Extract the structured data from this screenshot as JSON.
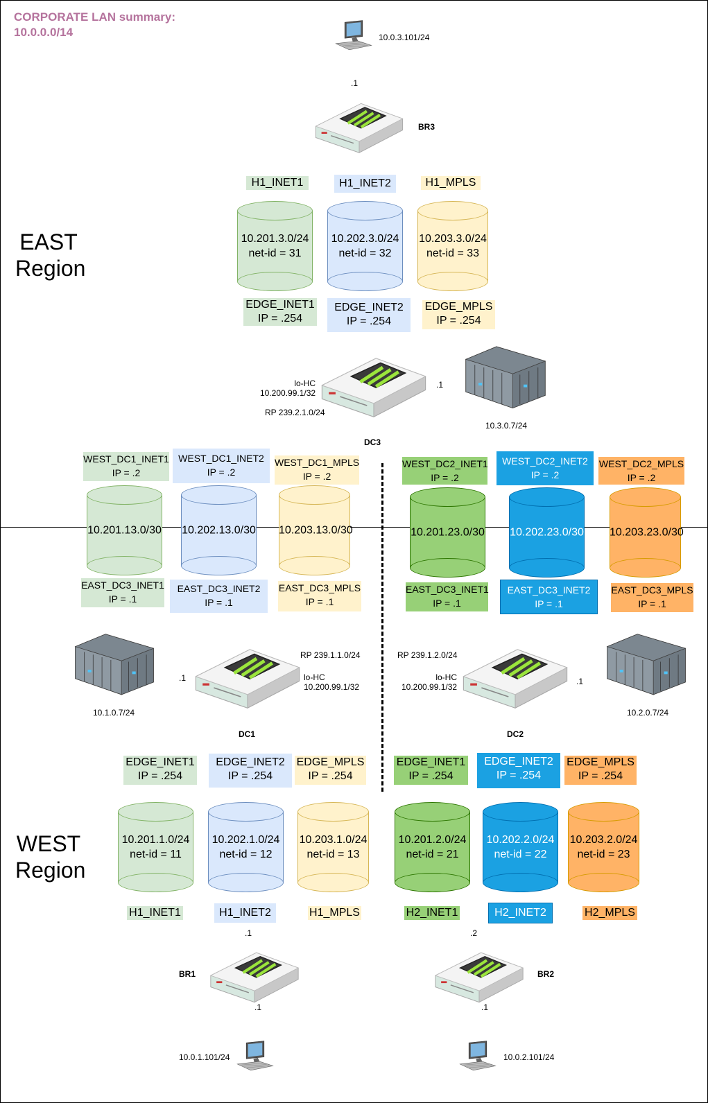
{
  "summary": {
    "line1": "CORPORATE LAN summary:",
    "line2": "10.0.0.0/14",
    "color": "#b5739d"
  },
  "regions": {
    "east_line1": "EAST",
    "east_line2": "Region",
    "west_line1": "WEST",
    "west_line2": "Region"
  },
  "colors": {
    "inet1_light": "#d5e8d4",
    "inet1_light_border": "#82b366",
    "inet2_light": "#dae8fc",
    "inet2_light_border": "#6c8ebf",
    "mpls_light": "#fff2cc",
    "mpls_light_border": "#d6b656",
    "inet1_dark": "#97d077",
    "inet1_dark_border": "#2d7600",
    "inet2_dark": "#1ba1e2",
    "inet2_dark_border": "#006eaf",
    "mpls_dark": "#ffb366",
    "mpls_dark_border": "#d79b00"
  },
  "br3": {
    "name": "BR3",
    "pc_ip": "10.0.3.101/24",
    "port": ".1",
    "labels": [
      "H1_INET1",
      "H1_INET2",
      "H1_MPLS"
    ],
    "cylinders": [
      {
        "subnet": "10.201.3.0/24",
        "netid": "net-id = 31"
      },
      {
        "subnet": "10.202.3.0/24",
        "netid": "net-id = 32"
      },
      {
        "subnet": "10.203.3.0/24",
        "netid": "net-id = 33"
      }
    ]
  },
  "dc3": {
    "name": "DC3",
    "edges": [
      {
        "name": "EDGE_INET1",
        "ip": "IP = .254"
      },
      {
        "name": "EDGE_INET2",
        "ip": "IP = .254"
      },
      {
        "name": "EDGE_MPLS",
        "ip": "IP = .254"
      }
    ],
    "lo_hc": "lo-HC",
    "lo_hc_ip": "10.200.99.1/32",
    "rp": "RP 239.2.1.0/24",
    "port": ".1",
    "server_ip": "10.3.0.7/24"
  },
  "links_dc1": {
    "west": [
      {
        "name": "WEST_DC1_INET1",
        "ip": "IP = .2"
      },
      {
        "name": "WEST_DC1_INET2",
        "ip": "IP = .2"
      },
      {
        "name": "WEST_DC1_MPLS",
        "ip": "IP = .2"
      }
    ],
    "subnets": [
      "10.201.13.0/30",
      "10.202.13.0/30",
      "10.203.13.0/30"
    ],
    "east": [
      {
        "name": "EAST_DC3_INET1",
        "ip": "IP = .1"
      },
      {
        "name": "EAST_DC3_INET2",
        "ip": "IP = .1"
      },
      {
        "name": "EAST_DC3_MPLS",
        "ip": "IP = .1"
      }
    ]
  },
  "links_dc2": {
    "west": [
      {
        "name": "WEST_DC2_INET1",
        "ip": "IP = .2"
      },
      {
        "name": "WEST_DC2_INET2",
        "ip": "IP = .2"
      },
      {
        "name": "WEST_DC2_MPLS",
        "ip": "IP = .2"
      }
    ],
    "subnets": [
      "10.201.23.0/30",
      "10.202.23.0/30",
      "10.203.23.0/30"
    ],
    "east": [
      {
        "name": "EAST_DC3_INET1",
        "ip": "IP = .1"
      },
      {
        "name": "EAST_DC3_INET2",
        "ip": "IP  = .1"
      },
      {
        "name": "EAST_DC3_MPLS",
        "ip": "IP = .1"
      }
    ]
  },
  "dc1": {
    "name": "DC1",
    "server_ip": "10.1.0.7/24",
    "port": ".1",
    "rp": "RP 239.1.1.0/24",
    "lo_hc": "lo-HC",
    "lo_hc_ip": "10.200.99.1/32",
    "edges": [
      {
        "name": "EDGE_INET1",
        "ip": "IP = .254"
      },
      {
        "name": "EDGE_INET2",
        "ip": "IP = .254"
      },
      {
        "name": "EDGE_MPLS",
        "ip": "IP = .254"
      }
    ],
    "cylinders": [
      {
        "subnet": "10.201.1.0/24",
        "netid": "net-id = 11"
      },
      {
        "subnet": "10.202.1.0/24",
        "netid": "net-id = 12"
      },
      {
        "subnet": "10.203.1.0/24",
        "netid": "net-id = 13"
      }
    ],
    "labels": [
      "H1_INET1",
      "H1_INET2",
      "H1_MPLS"
    ]
  },
  "dc2": {
    "name": "DC2",
    "server_ip": "10.2.0.7/24",
    "port": ".1",
    "rp": "RP 239.1.2.0/24",
    "lo_hc": "lo-HC",
    "lo_hc_ip": "10.200.99.1/32",
    "edges": [
      {
        "name": "EDGE_INET1",
        "ip": "IP = .254"
      },
      {
        "name": "EDGE_INET2",
        "ip": "IP = .254"
      },
      {
        "name": "EDGE_MPLS",
        "ip": "IP = .254"
      }
    ],
    "cylinders": [
      {
        "subnet": "10.201.2.0/24",
        "netid": "net-id = 21"
      },
      {
        "subnet": "10.202.2.0/24",
        "netid": "net-id = 22"
      },
      {
        "subnet": "10.203.2.0/24",
        "netid": "net-id = 23"
      }
    ],
    "labels": [
      "H2_INET1",
      "H2_INET2",
      "H2_MPLS"
    ]
  },
  "br1": {
    "name": "BR1",
    "port_top": ".1",
    "port_bottom": ".1",
    "pc_ip": "10.0.1.101/24"
  },
  "br2": {
    "name": "BR2",
    "port_top": ".2",
    "port_bottom": ".1",
    "pc_ip": "10.0.2.101/24"
  }
}
